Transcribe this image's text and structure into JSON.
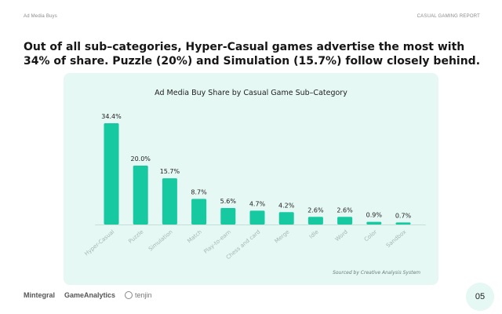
{
  "header": {
    "section_label": "Ad Media Buys",
    "report_label": "CASUAL GAMING REPORT"
  },
  "headline": "Out of all sub–categories, Hyper-Casual games advertise the most with 34% of share. Puzzle (20%) and Simulation (15.7%) follow closely behind.",
  "chart_data": {
    "type": "bar",
    "title": "Ad Media Buy Share by Casual Game Sub–Category",
    "categories": [
      "Hyper-Casual",
      "Puzzle",
      "Simulation",
      "Match",
      "Play-to-earn",
      "Chess and card",
      "Merge",
      "Idle",
      "Word",
      "Color",
      "Sandbox"
    ],
    "values": [
      34.4,
      20.0,
      15.7,
      8.7,
      5.6,
      4.7,
      4.2,
      2.6,
      2.6,
      0.9,
      0.7
    ],
    "data_labels": [
      "34.4%",
      "20.0%",
      "15.7%",
      "8.7%",
      "5.6%",
      "4.7%",
      "4.2%",
      "2.6%",
      "2.6%",
      "0.9%",
      "0.7%"
    ],
    "xlabel": "",
    "ylabel": "",
    "ylim": [
      0,
      34.4
    ],
    "grid": false,
    "bar_color": "#16c9a1",
    "source_note": "Sourced by Creative Analysis System"
  },
  "footer": {
    "logos": [
      "Mintegral",
      "GameAnalytics",
      "tenjin"
    ],
    "page_number": "05"
  },
  "colors": {
    "accent": "#16c9a1",
    "card_background": "#e5f8f3"
  }
}
